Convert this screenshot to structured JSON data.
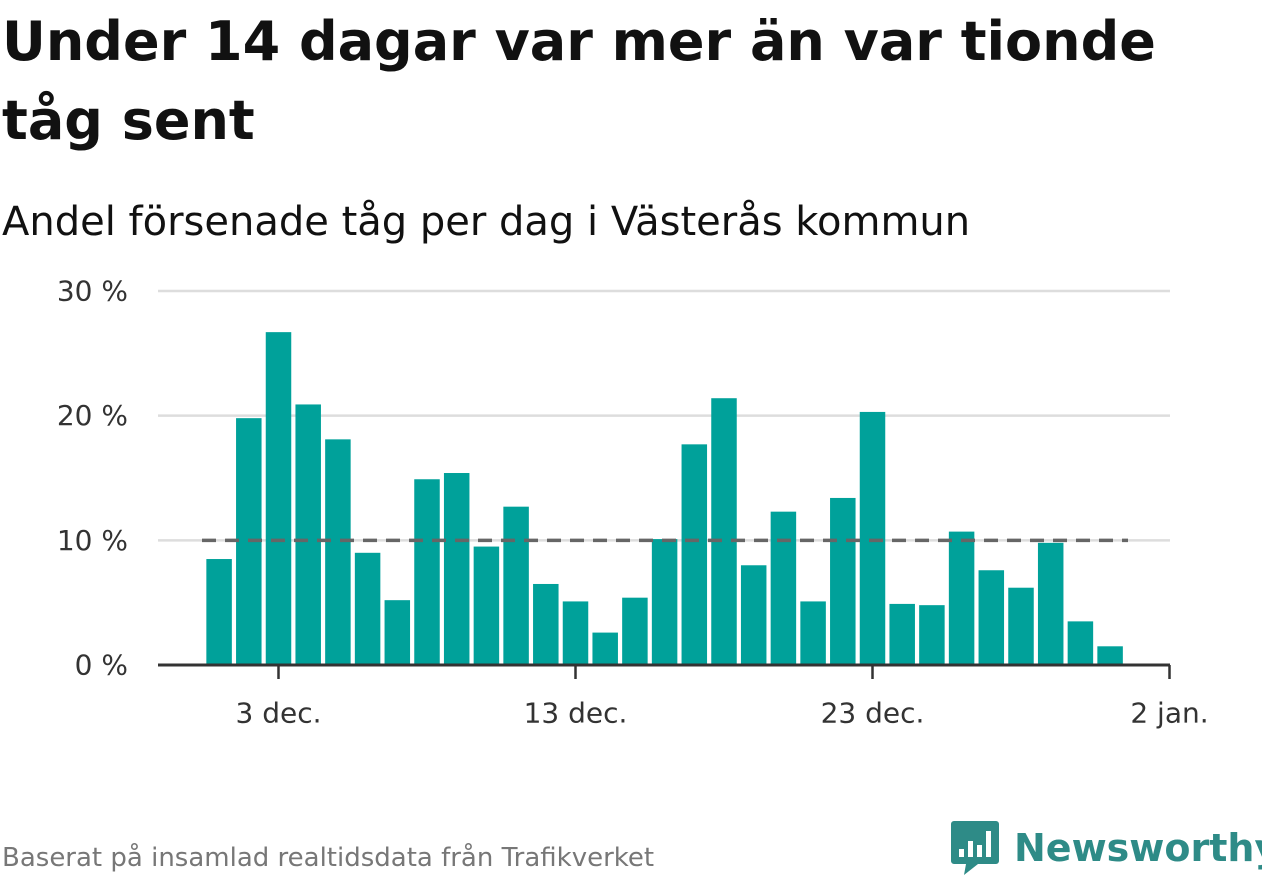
{
  "title": "Under 14 dagar var mer än var tionde tåg sent",
  "subtitle": "Andel försenade tåg per dag i Västerås kommun",
  "source": "Baserat på insamlad realtidsdata från Trafikverket",
  "brand": "Newsworthy",
  "colors": {
    "bar": "#00a19a",
    "reference_line": "#666666",
    "grid": "#dddddd",
    "axis": "#333333",
    "brand": "#2e8b87"
  },
  "chart_data": {
    "type": "bar",
    "x_start": "2019-11-29",
    "y_ticks": [
      {
        "value": 0,
        "label": "0 %"
      },
      {
        "value": 10,
        "label": "10 %"
      },
      {
        "value": 20,
        "label": "20 %"
      },
      {
        "value": 30,
        "label": "30 %"
      }
    ],
    "x_ticks": [
      {
        "date": "2019-12-03",
        "label": "3 dec."
      },
      {
        "date": "2019-12-13",
        "label": "13 dec."
      },
      {
        "date": "2019-12-23",
        "label": "23 dec."
      },
      {
        "date": "2020-01-02",
        "label": "2 jan."
      }
    ],
    "ylim": [
      0,
      30
    ],
    "xlim": [
      "2019-11-27",
      "2020-01-02"
    ],
    "reference_value": 10,
    "grid": true,
    "categories": [
      "2019-12-01",
      "2019-12-02",
      "2019-12-03",
      "2019-12-04",
      "2019-12-05",
      "2019-12-06",
      "2019-12-07",
      "2019-12-08",
      "2019-12-09",
      "2019-12-10",
      "2019-12-11",
      "2019-12-12",
      "2019-12-13",
      "2019-12-14",
      "2019-12-15",
      "2019-12-16",
      "2019-12-17",
      "2019-12-18",
      "2019-12-19",
      "2019-12-20",
      "2019-12-21",
      "2019-12-22",
      "2019-12-23",
      "2019-12-24",
      "2019-12-25",
      "2019-12-26",
      "2019-12-27",
      "2019-12-28",
      "2019-12-29",
      "2019-12-30",
      "2019-12-31"
    ],
    "values": [
      8.5,
      19.8,
      26.7,
      20.9,
      18.1,
      9.0,
      5.2,
      14.9,
      15.4,
      9.5,
      12.7,
      6.5,
      5.1,
      2.6,
      5.4,
      10.1,
      17.7,
      21.4,
      8.0,
      12.3,
      5.1,
      13.4,
      20.3,
      4.9,
      4.8,
      10.7,
      7.6,
      6.2,
      9.8,
      3.5,
      1.5
    ]
  }
}
